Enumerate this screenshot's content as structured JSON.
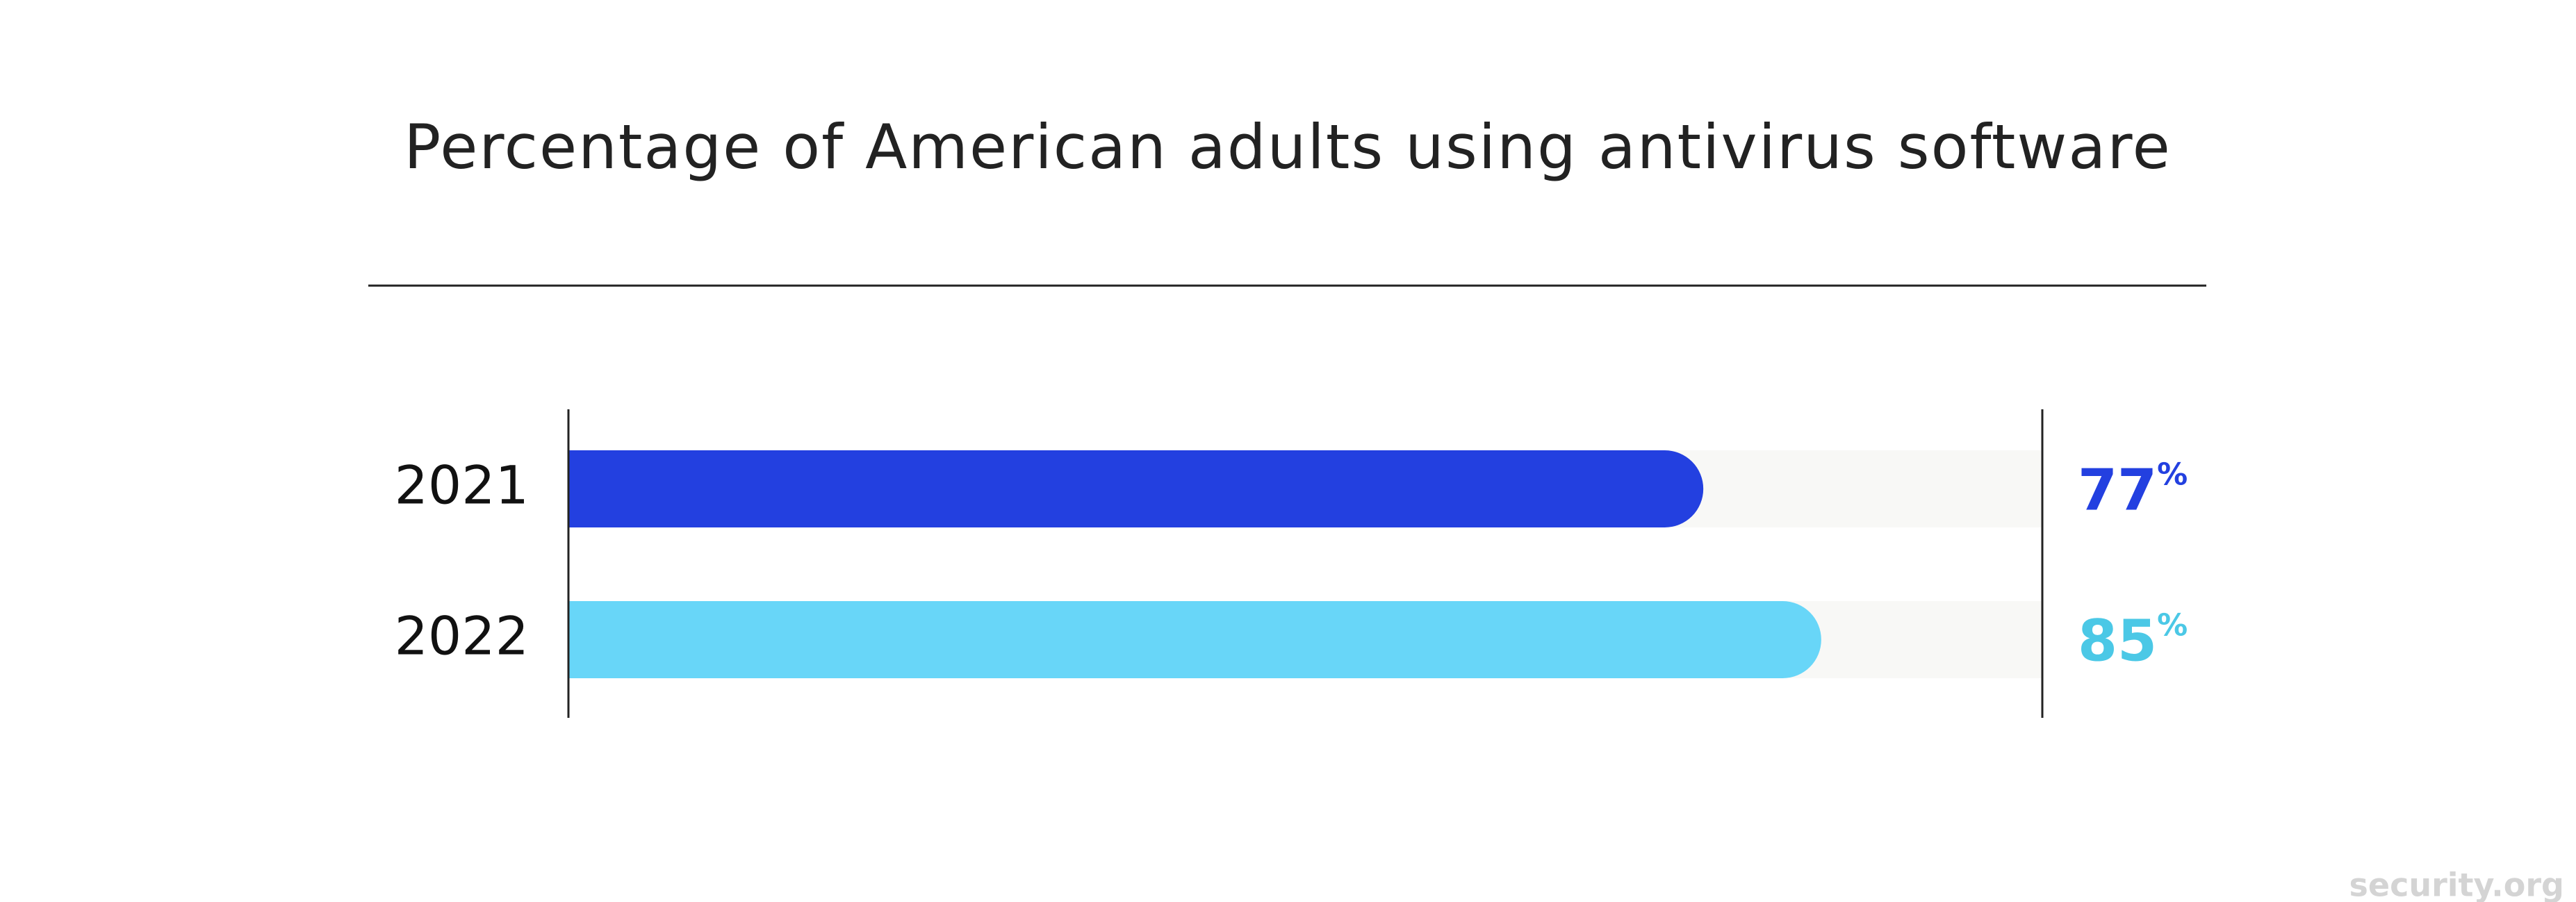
{
  "chart_data": {
    "type": "bar",
    "orientation": "horizontal",
    "title": "Percentage of American adults using antivirus software",
    "categories": [
      "2021",
      "2022"
    ],
    "values": [
      77,
      85
    ],
    "value_labels": [
      "77%",
      "85%"
    ],
    "colors": [
      "#2340e0",
      "#68d6f8"
    ],
    "label_colors": [
      "#2340e0",
      "#4bc8e6"
    ],
    "xlim": [
      0,
      100
    ],
    "track_color": "#f8f8f6"
  },
  "watermark": "security.org"
}
